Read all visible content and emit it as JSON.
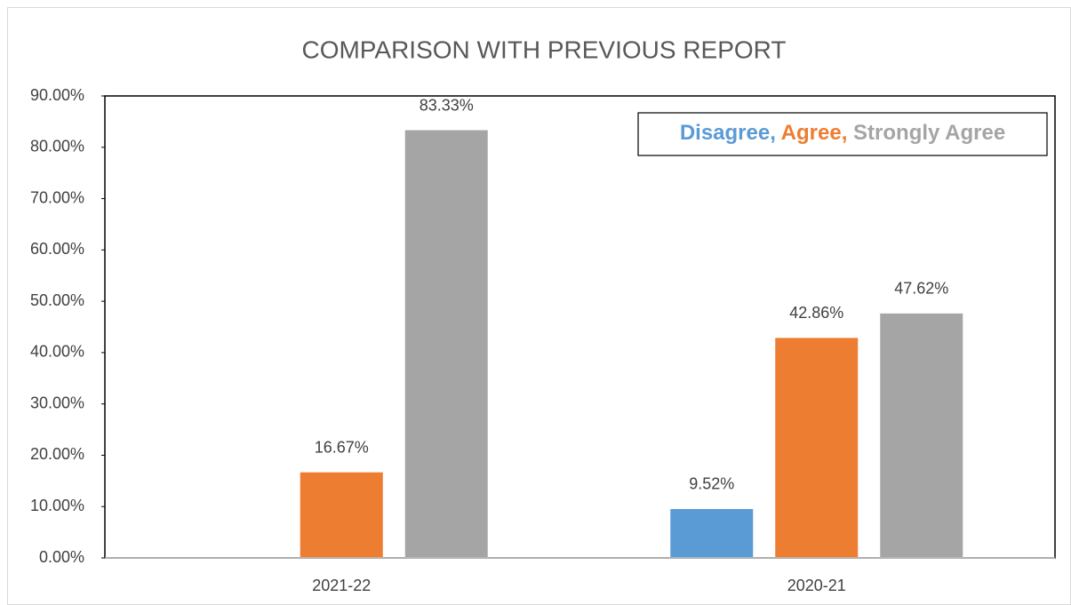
{
  "chart_data": {
    "type": "bar",
    "title": "COMPARISON WITH PREVIOUS REPORT",
    "categories": [
      "2021-22",
      "2020-21"
    ],
    "series": [
      {
        "name": "Disagree",
        "color": "#5b9bd5",
        "values": [
          null,
          9.52
        ],
        "value_labels": [
          null,
          "9.52%"
        ]
      },
      {
        "name": "Agree",
        "color": "#ed7d31",
        "values": [
          16.67,
          42.86
        ],
        "value_labels": [
          "16.67%",
          "42.86%"
        ]
      },
      {
        "name": "Strongly Agree",
        "color": "#a5a5a5",
        "values": [
          83.33,
          47.62
        ],
        "value_labels": [
          "83.33%",
          "47.62%"
        ]
      }
    ],
    "legend_separator": ",",
    "ylim": [
      0,
      90
    ],
    "yticks": [
      {
        "value": 0,
        "label": "0.00%"
      },
      {
        "value": 10,
        "label": "10.00%"
      },
      {
        "value": 20,
        "label": "20.00%"
      },
      {
        "value": 30,
        "label": "30.00%"
      },
      {
        "value": 40,
        "label": "40.00%"
      },
      {
        "value": 50,
        "label": "50.00%"
      },
      {
        "value": 60,
        "label": "60.00%"
      },
      {
        "value": 70,
        "label": "70.00%"
      },
      {
        "value": 80,
        "label": "80.00%"
      },
      {
        "value": 90,
        "label": "90.00%"
      }
    ],
    "legend": "upper right"
  }
}
